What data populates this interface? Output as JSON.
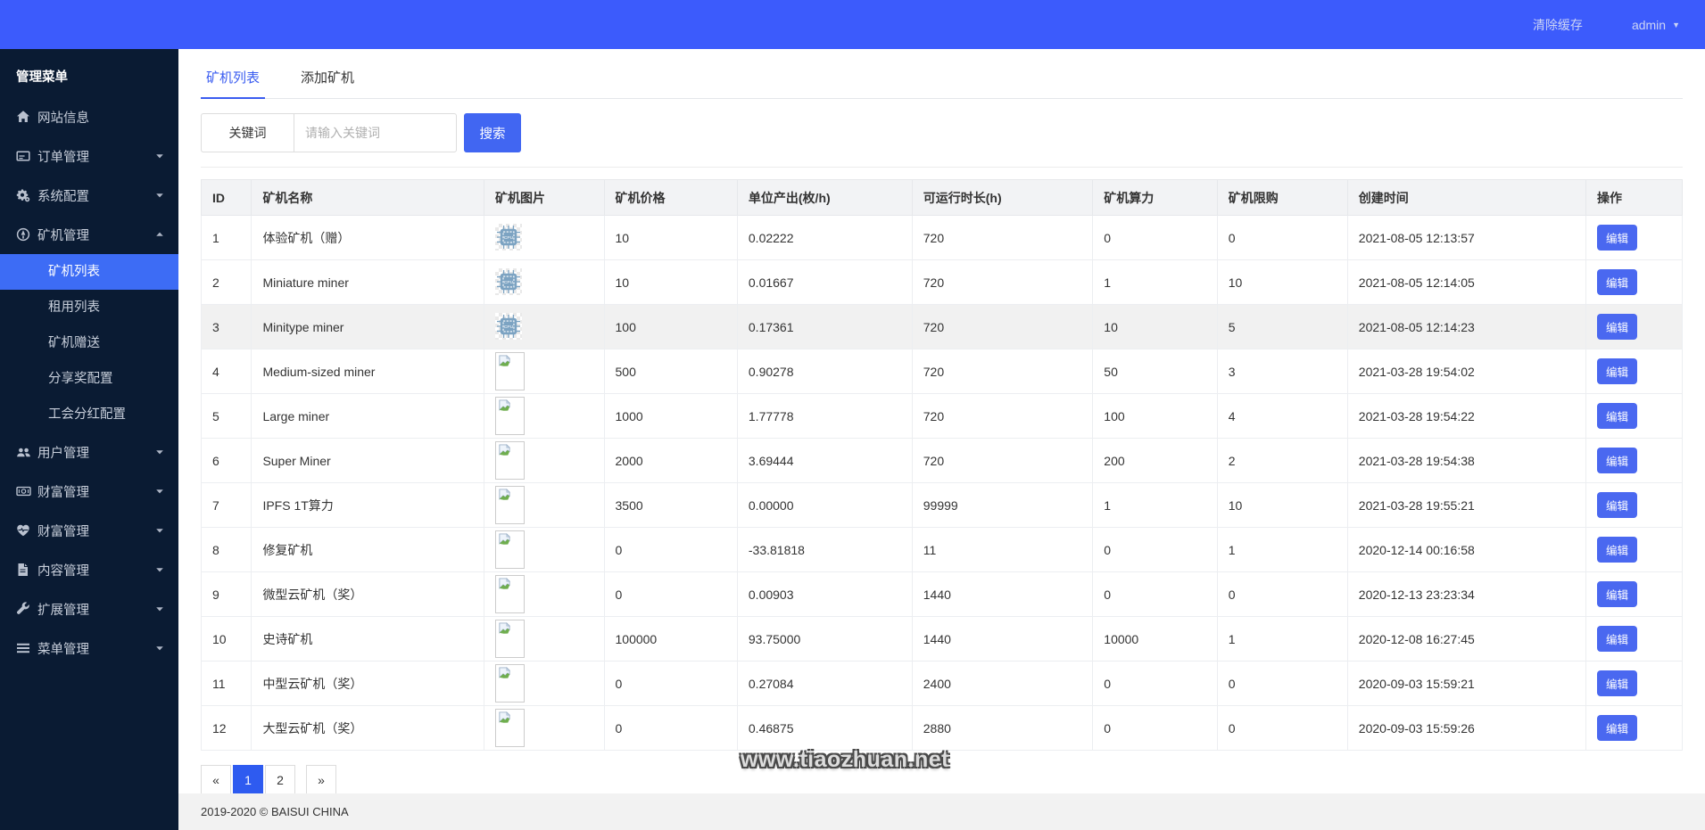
{
  "topbar": {
    "clear_cache": "清除缓存",
    "username": "admin"
  },
  "sidebar": {
    "header": "管理菜单",
    "items": [
      {
        "key": "website",
        "label": "网站信息",
        "icon": "home-icon",
        "caret": null
      },
      {
        "key": "orders",
        "label": "订单管理",
        "icon": "orders-icon",
        "caret": "down"
      },
      {
        "key": "system",
        "label": "系统配置",
        "icon": "gears-icon",
        "caret": "down"
      },
      {
        "key": "miner",
        "label": "矿机管理",
        "icon": "miner-icon",
        "caret": "up",
        "children": [
          "矿机列表",
          "租用列表",
          "矿机赠送",
          "分享奖配置",
          "工会分红配置"
        ],
        "active_child": 0
      },
      {
        "key": "users",
        "label": "用户管理",
        "icon": "users-icon",
        "caret": "down"
      },
      {
        "key": "wealth-1",
        "label": "财富管理",
        "icon": "money-icon",
        "caret": "down"
      },
      {
        "key": "wealth-2",
        "label": "财富管理",
        "icon": "heart-icon",
        "caret": "down"
      },
      {
        "key": "content",
        "label": "内容管理",
        "icon": "file-icon",
        "caret": "down"
      },
      {
        "key": "extension",
        "label": "扩展管理",
        "icon": "wrench-icon",
        "caret": "down"
      },
      {
        "key": "menu",
        "label": "菜单管理",
        "icon": "bars-icon",
        "caret": "down"
      }
    ]
  },
  "tabs": [
    {
      "label": "矿机列表",
      "active": true
    },
    {
      "label": "添加矿机",
      "active": false
    }
  ],
  "search": {
    "label": "关键词",
    "placeholder": "请输入关键词",
    "button": "搜索"
  },
  "table": {
    "columns": [
      "ID",
      "矿机名称",
      "矿机图片",
      "矿机价格",
      "单位产出(枚/h)",
      "可运行时长(h)",
      "矿机算力",
      "矿机限购",
      "创建时间",
      "操作"
    ],
    "edit_label": "编辑",
    "rows": [
      {
        "id": "1",
        "name": "体验矿机（赠）",
        "image": "chip",
        "price": "10",
        "output": "0.02222",
        "hours": "720",
        "power": "0",
        "limit": "0",
        "created": "2021-08-05 12:13:57",
        "shaded": false
      },
      {
        "id": "2",
        "name": "Miniature miner",
        "image": "chip",
        "price": "10",
        "output": "0.01667",
        "hours": "720",
        "power": "1",
        "limit": "10",
        "created": "2021-08-05 12:14:05",
        "shaded": false
      },
      {
        "id": "3",
        "name": "Minitype miner",
        "image": "chip",
        "price": "100",
        "output": "0.17361",
        "hours": "720",
        "power": "10",
        "limit": "5",
        "created": "2021-08-05 12:14:23",
        "shaded": true
      },
      {
        "id": "4",
        "name": "Medium-sized miner",
        "image": "broken",
        "price": "500",
        "output": "0.90278",
        "hours": "720",
        "power": "50",
        "limit": "3",
        "created": "2021-03-28 19:54:02",
        "shaded": false
      },
      {
        "id": "5",
        "name": "Large miner",
        "image": "broken",
        "price": "1000",
        "output": "1.77778",
        "hours": "720",
        "power": "100",
        "limit": "4",
        "created": "2021-03-28 19:54:22",
        "shaded": false
      },
      {
        "id": "6",
        "name": "Super Miner",
        "image": "broken",
        "price": "2000",
        "output": "3.69444",
        "hours": "720",
        "power": "200",
        "limit": "2",
        "created": "2021-03-28 19:54:38",
        "shaded": false
      },
      {
        "id": "7",
        "name": "IPFS 1T算力",
        "image": "broken",
        "price": "3500",
        "output": "0.00000",
        "hours": "99999",
        "power": "1",
        "limit": "10",
        "created": "2021-03-28 19:55:21",
        "shaded": false
      },
      {
        "id": "8",
        "name": "修复矿机",
        "image": "broken",
        "price": "0",
        "output": "-33.81818",
        "hours": "11",
        "power": "0",
        "limit": "1",
        "created": "2020-12-14 00:16:58",
        "shaded": false
      },
      {
        "id": "9",
        "name": "微型云矿机（奖）",
        "image": "broken",
        "price": "0",
        "output": "0.00903",
        "hours": "1440",
        "power": "0",
        "limit": "0",
        "created": "2020-12-13 23:23:34",
        "shaded": false
      },
      {
        "id": "10",
        "name": "史诗矿机",
        "image": "broken",
        "price": "100000",
        "output": "93.75000",
        "hours": "1440",
        "power": "10000",
        "limit": "1",
        "created": "2020-12-08 16:27:45",
        "shaded": false
      },
      {
        "id": "11",
        "name": "中型云矿机（奖）",
        "image": "broken",
        "price": "0",
        "output": "0.27084",
        "hours": "2400",
        "power": "0",
        "limit": "0",
        "created": "2020-09-03 15:59:21",
        "shaded": false
      },
      {
        "id": "12",
        "name": "大型云矿机（奖）",
        "image": "broken",
        "price": "0",
        "output": "0.46875",
        "hours": "2880",
        "power": "0",
        "limit": "0",
        "created": "2020-09-03 15:59:26",
        "shaded": false
      }
    ]
  },
  "pagination": {
    "prev": "«",
    "pages": [
      "1",
      "2"
    ],
    "active": "1",
    "next": "»"
  },
  "watermark": "www.tiaozhuan.net",
  "footer": "2019-2020 © BAISUI CHINA",
  "colors": {
    "topbar": "#3c5bfc",
    "sidebar": "#0a1b33",
    "accent": "#3a5cf0",
    "active_item": "#3d6cf5",
    "edit_button": "#4a68f0",
    "header_bg": "#f2f3f5",
    "shaded_row": "#f1f1f1"
  }
}
